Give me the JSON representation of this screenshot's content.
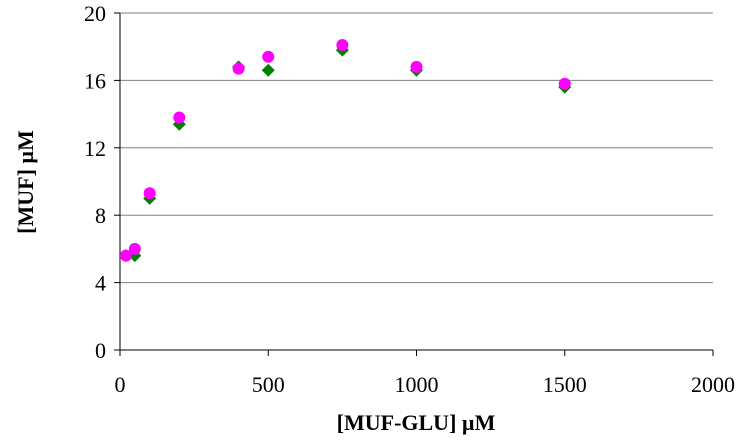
{
  "chart_data": {
    "type": "scatter",
    "xlabel": "[MUF-GLU] µM",
    "ylabel": "[MUF] µM",
    "xlim": [
      0,
      2000
    ],
    "ylim": [
      0,
      20
    ],
    "xticks": [
      0,
      500,
      1000,
      1500,
      2000
    ],
    "yticks": [
      0,
      4,
      8,
      12,
      16,
      20
    ],
    "grid": "horizontal",
    "legend": "none",
    "series": [
      {
        "marker": "diamond",
        "color": "#008000",
        "x": [
          20,
          50,
          100,
          200,
          400,
          500,
          750,
          1000,
          1500
        ],
        "y": [
          5.6,
          5.6,
          9.0,
          13.4,
          16.8,
          16.6,
          17.8,
          16.6,
          15.6
        ]
      },
      {
        "marker": "circle",
        "color": "#ff00ff",
        "x": [
          20,
          50,
          100,
          200,
          400,
          500,
          750,
          1000,
          1500
        ],
        "y": [
          5.6,
          6.0,
          9.3,
          13.8,
          16.7,
          17.4,
          18.1,
          16.8,
          15.8
        ]
      }
    ]
  }
}
